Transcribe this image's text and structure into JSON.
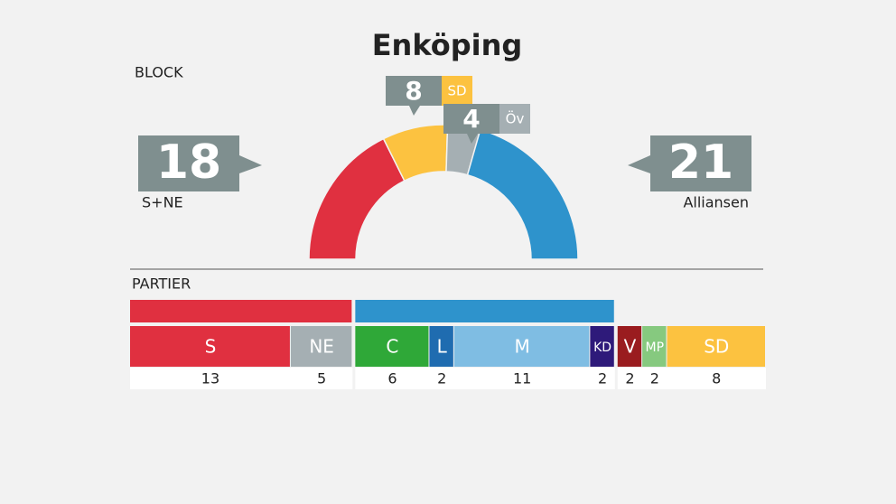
{
  "chart_data": {
    "type": "seats",
    "title": "Enköping",
    "block_label": "BLOCK",
    "party_label": "PARTIER",
    "blocks": [
      {
        "name": "S+NE",
        "value": 18,
        "color": "#e03040"
      },
      {
        "name": "SD",
        "value": 8,
        "color": "#fcc240"
      },
      {
        "name": "Öv",
        "value": 4,
        "color": "#a5afb3"
      },
      {
        "name": "Alliansen",
        "value": 21,
        "color": "#2e93cc"
      }
    ],
    "groups": [
      {
        "color": "#e03040",
        "parties": [
          {
            "name": "S",
            "value": 13,
            "color": "#e03040"
          },
          {
            "name": "NE",
            "value": 5,
            "color": "#a5afb3"
          }
        ]
      },
      {
        "color": "#2e93cc",
        "parties": [
          {
            "name": "C",
            "value": 6,
            "color": "#2fa838"
          },
          {
            "name": "L",
            "value": 2,
            "color": "#1f6cb0"
          },
          {
            "name": "M",
            "value": 11,
            "color": "#7fbde3"
          },
          {
            "name": "KD",
            "value": 2,
            "color": "#2e1a7a"
          }
        ]
      },
      {
        "parties": [
          {
            "name": "V",
            "value": 2,
            "color": "#9a1c1f"
          },
          {
            "name": "MP",
            "value": 2,
            "color": "#86c97f"
          },
          {
            "name": "SD",
            "value": 8,
            "color": "#fcc240"
          }
        ]
      }
    ]
  }
}
